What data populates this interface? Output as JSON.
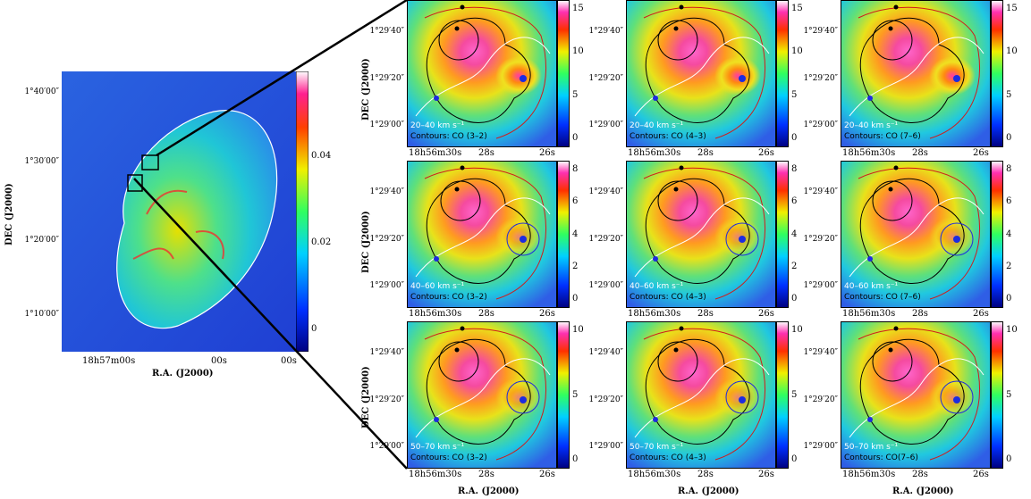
{
  "colors": {
    "map_low": "#1e2bd6",
    "map_mid": "#21d6c8",
    "map_hi": "#f5e100",
    "map_peak": "#ff2a8a",
    "contour_white": "#ffffff",
    "contour_black": "#000000",
    "contour_red": "#d11b1b",
    "source_marker": "#1d2be0"
  },
  "overview": {
    "dec_axis_title": "DEC (J2000)",
    "ra_axis_title": "R.A. (J2000)",
    "dec_ticks": [
      "1°40′00″",
      "1°30′00″",
      "1°20′00″",
      "1°10′00″"
    ],
    "ra_ticks": [
      "18h57m00s",
      "00s",
      "00s"
    ],
    "colorbar_ticks": [
      "0.04",
      "0.02",
      "0"
    ]
  },
  "grid": {
    "dec_axis_title": "DEC (J2000)",
    "ra_axis_title": "R.A. (J2000)",
    "dec_ticks": [
      "1°29′40″",
      "1°29′20″",
      "1°29′00″"
    ],
    "ra_ticks": [
      "18h56m30s",
      "28s",
      "26s"
    ],
    "rows": [
      {
        "velocity": "20–40 km s⁻¹",
        "colorbar_ticks": [
          "15",
          "10",
          "5",
          "0"
        ]
      },
      {
        "velocity": "40–60 km s⁻¹",
        "colorbar_ticks": [
          "8",
          "6",
          "4",
          "2",
          "0"
        ]
      },
      {
        "velocity": "50–70 km s⁻¹",
        "colorbar_ticks": [
          "10",
          "5",
          "0"
        ]
      }
    ],
    "contour_labels": [
      "Contours: CO (3–2)",
      "Contours: CO (4–3)",
      "Contours: CO (7–6)"
    ],
    "contour_label_r3c3": "Contours: CO(7–6)"
  }
}
